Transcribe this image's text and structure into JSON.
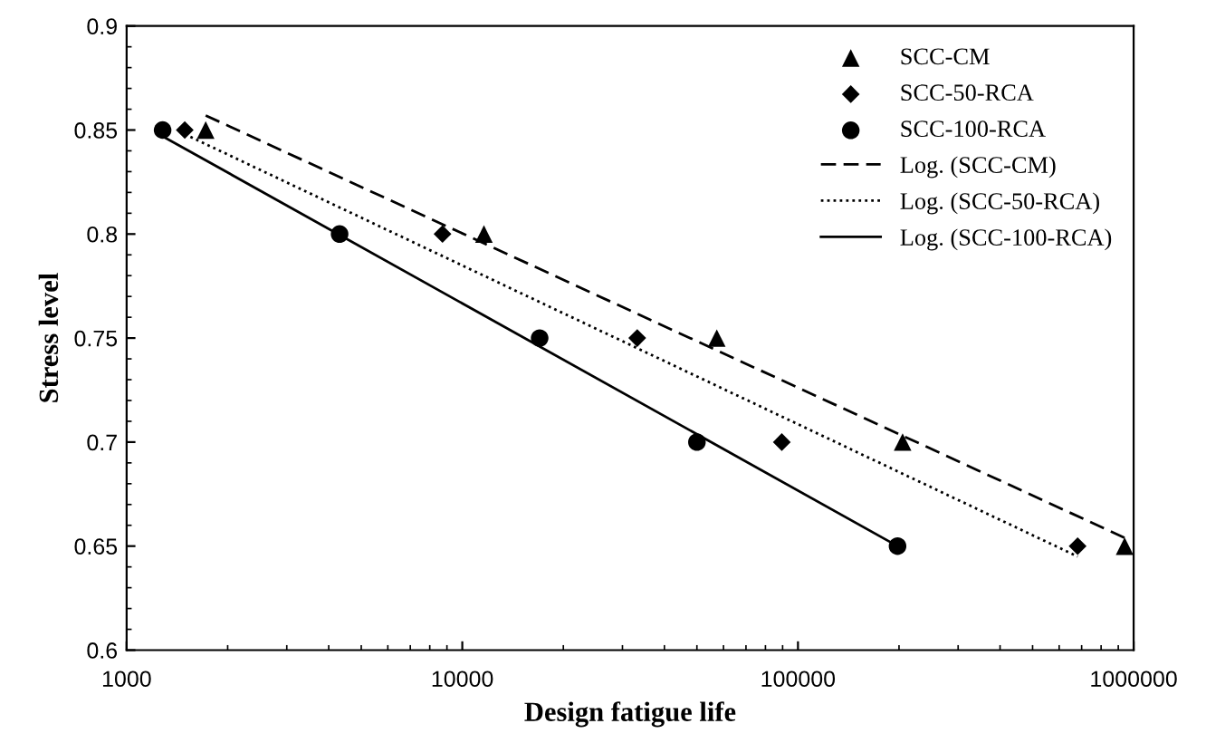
{
  "chart_data": {
    "type": "scatter",
    "xlabel": "Design fatigue life",
    "ylabel": "Stress level",
    "log": "x",
    "xlim": [
      1000,
      1000000
    ],
    "xticks": [
      1000,
      10000,
      100000,
      1000000
    ],
    "ylim": [
      0.6,
      0.9
    ],
    "yticks": [
      0.6,
      0.65,
      0.7,
      0.75,
      0.8,
      0.85,
      0.9
    ],
    "grid": false,
    "legend": "top right",
    "series": [
      {
        "name": "SCC-CM",
        "marker": "triangle",
        "color": "#000000",
        "x": [
          1720,
          11600,
          57300,
          205000,
          940000
        ],
        "values": [
          0.85,
          0.8,
          0.75,
          0.7,
          0.65
        ]
      },
      {
        "name": "SCC-50-RCA",
        "marker": "diamond",
        "color": "#000000",
        "x": [
          1490,
          8730,
          33200,
          89500,
          681000
        ],
        "values": [
          0.85,
          0.8,
          0.75,
          0.7,
          0.65
        ]
      },
      {
        "name": "SCC-100-RCA",
        "marker": "circle",
        "color": "#000000",
        "x": [
          1280,
          4310,
          17000,
          50000,
          198000
        ],
        "values": [
          0.85,
          0.8,
          0.75,
          0.7,
          0.65
        ]
      },
      {
        "name": "Log. (SCC-CM)",
        "type": "line",
        "line_style": "dashed",
        "color": "#000000",
        "x": [
          1720,
          940000
        ],
        "values": [
          0.857,
          0.654
        ]
      },
      {
        "name": "Log. (SCC-50-RCA)",
        "type": "line",
        "line_style": "dotted",
        "color": "#000000",
        "x": [
          1490,
          681000
        ],
        "values": [
          0.848,
          0.645
        ]
      },
      {
        "name": "Log. (SCC-100-RCA)",
        "type": "line",
        "line_style": "solid",
        "color": "#000000",
        "x": [
          1280,
          198000
        ],
        "values": [
          0.847,
          0.65
        ]
      }
    ]
  }
}
